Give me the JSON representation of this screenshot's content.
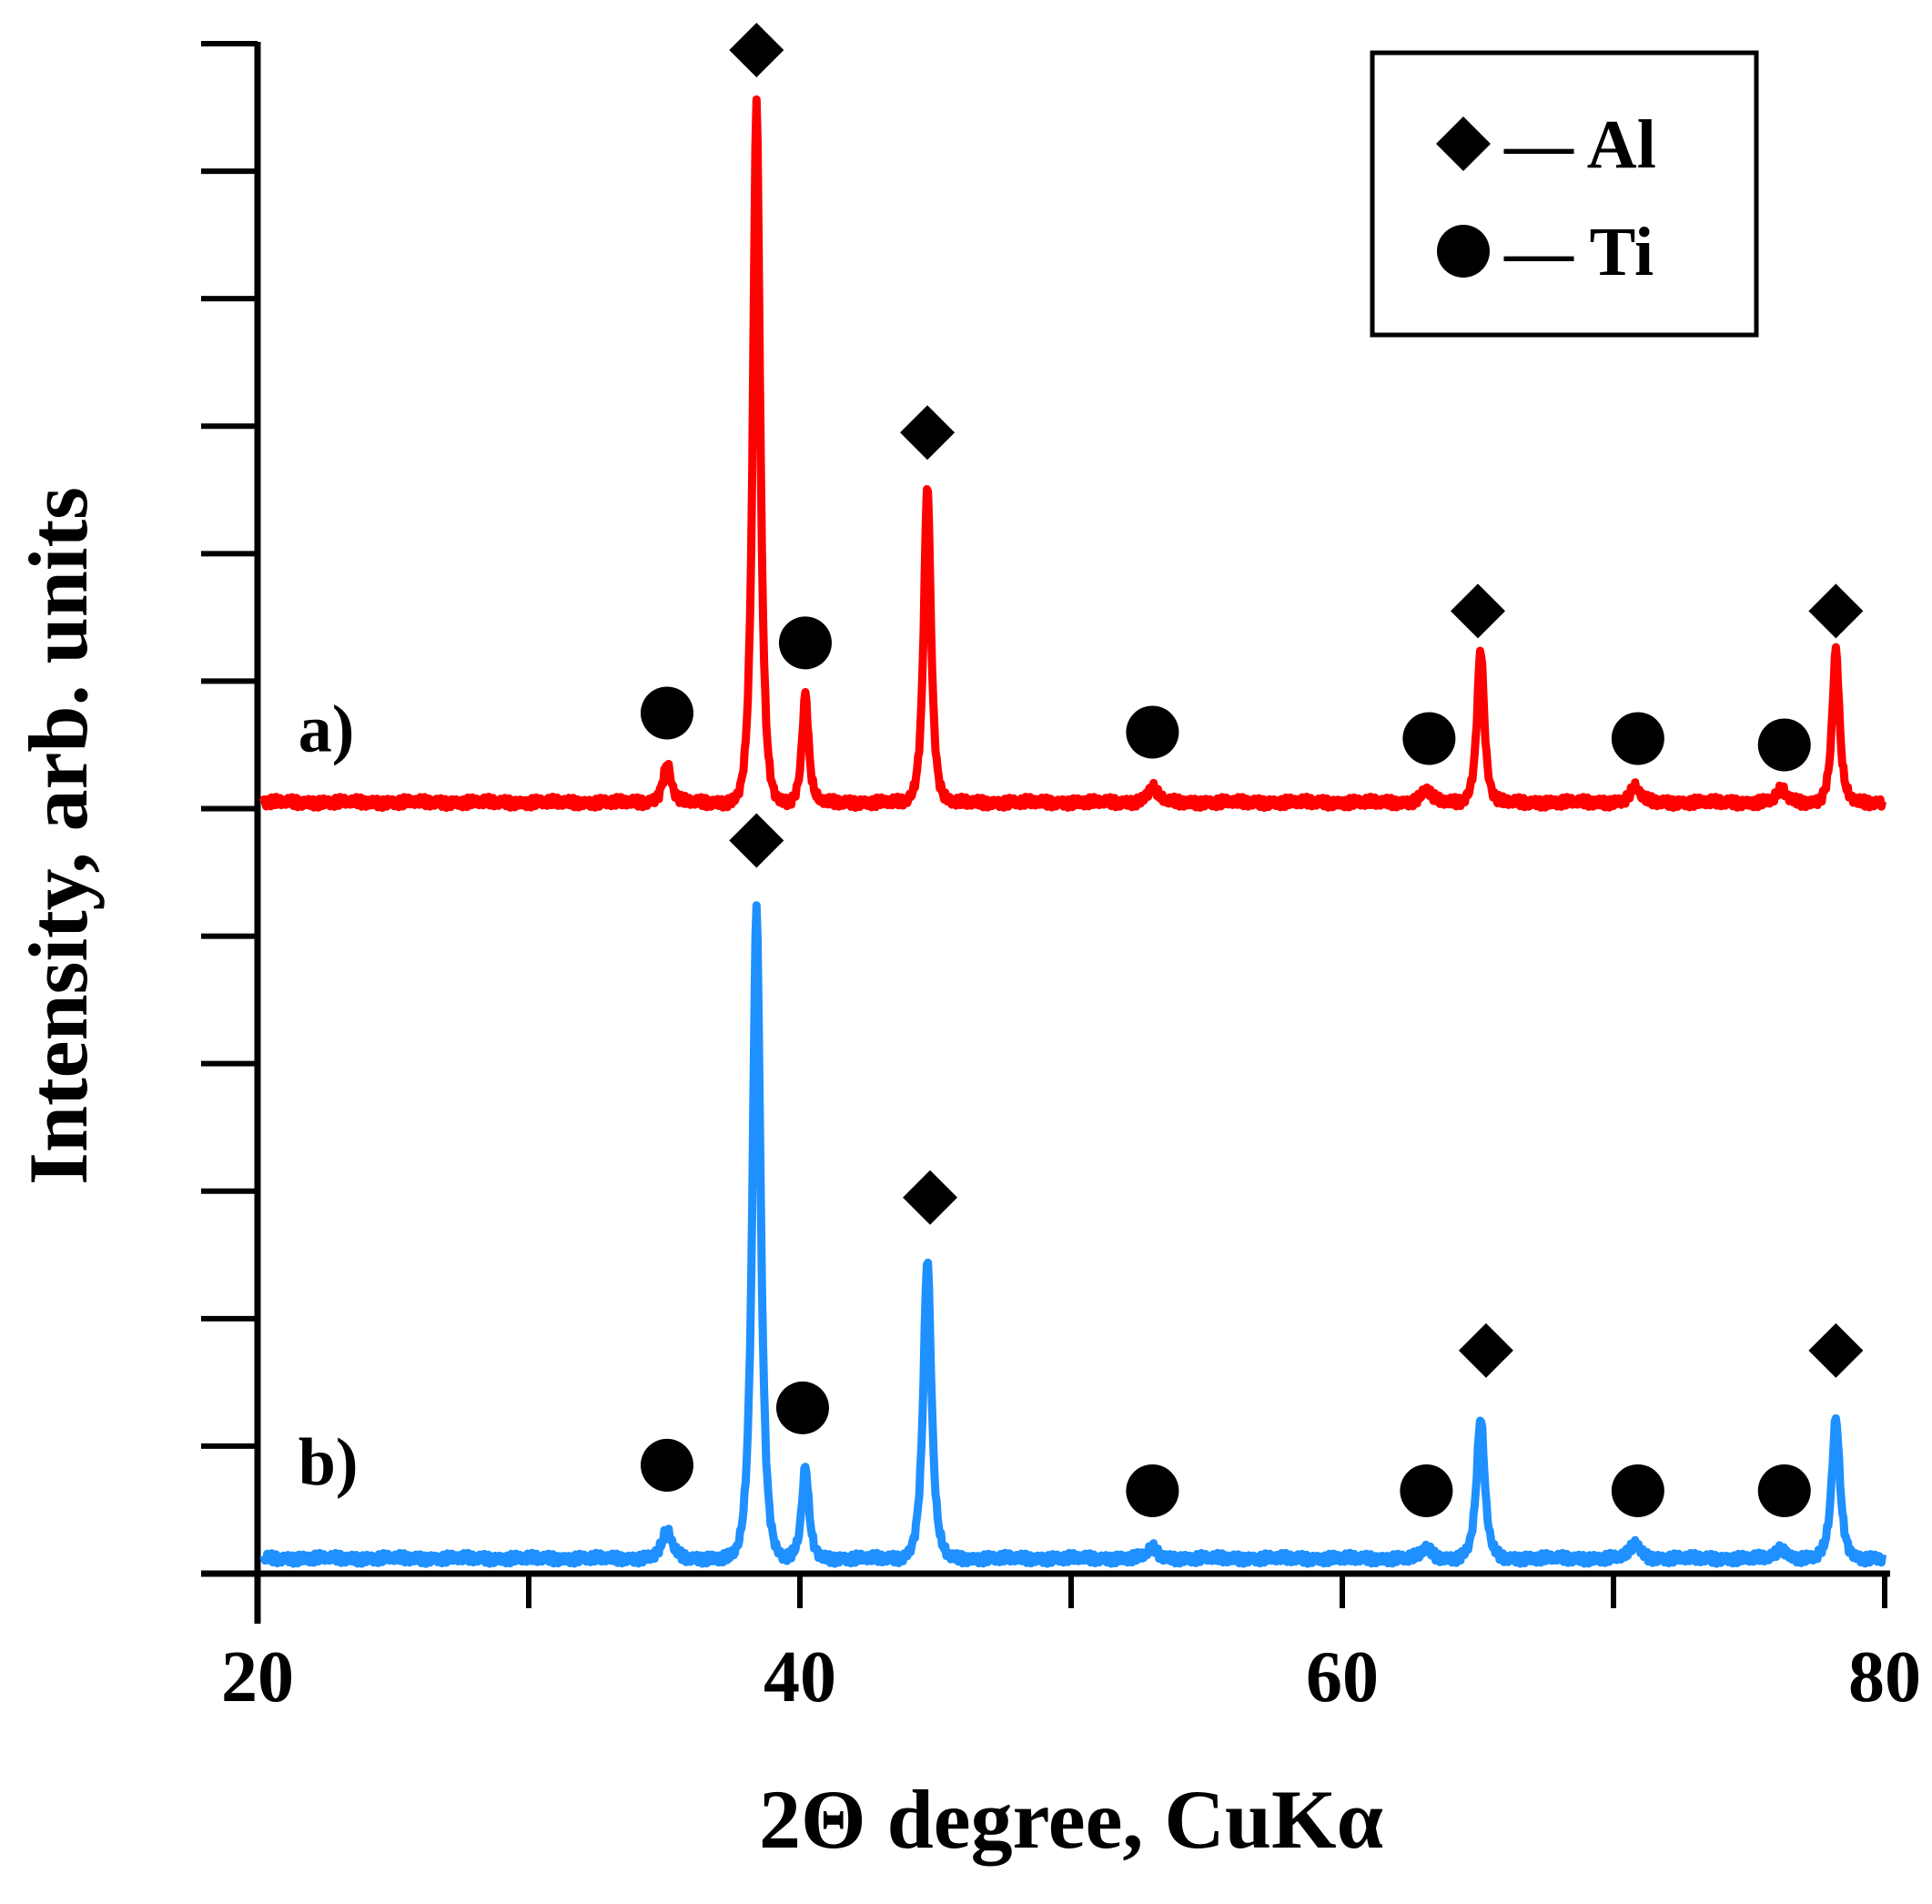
{
  "chart_data": {
    "type": "line",
    "title": "",
    "xlabel": "2Θ degree, CuKα",
    "ylabel": "Intensity, arb. units",
    "xlim": [
      20,
      80
    ],
    "ylim": [
      0,
      12
    ],
    "x_ticks": [
      20,
      30,
      40,
      50,
      60,
      70,
      80
    ],
    "x_tick_labels": [
      "20",
      "",
      "40",
      "",
      "60",
      "",
      "80"
    ],
    "y_ticks": [
      0,
      1,
      2,
      3,
      4,
      5,
      6,
      7,
      8,
      9,
      10,
      11,
      12
    ],
    "y_tick_labels": [],
    "legend": {
      "position": "top-right",
      "entries": [
        {
          "marker": "diamond",
          "label": "— Al"
        },
        {
          "marker": "circle",
          "label": "— Ti"
        }
      ]
    },
    "series": [
      {
        "name": "a)",
        "color": "#ff0000",
        "baseline": 6.05,
        "peaks": [
          {
            "x": 35.1,
            "height": 0.3,
            "width": 0.25
          },
          {
            "x": 38.4,
            "height": 5.5,
            "width": 0.22
          },
          {
            "x": 40.2,
            "height": 0.85,
            "width": 0.2
          },
          {
            "x": 44.7,
            "height": 2.5,
            "width": 0.22
          },
          {
            "x": 53.0,
            "height": 0.12,
            "width": 0.3
          },
          {
            "x": 63.1,
            "height": 0.1,
            "width": 0.3
          },
          {
            "x": 65.1,
            "height": 1.2,
            "width": 0.22
          },
          {
            "x": 70.8,
            "height": 0.12,
            "width": 0.3
          },
          {
            "x": 76.2,
            "height": 0.1,
            "width": 0.3
          },
          {
            "x": 78.2,
            "height": 1.2,
            "width": 0.22
          }
        ],
        "markers": [
          {
            "x": 35.1,
            "y": 6.75,
            "symbol": "circle"
          },
          {
            "x": 38.4,
            "y": 11.95,
            "symbol": "diamond"
          },
          {
            "x": 40.2,
            "y": 7.3,
            "symbol": "circle"
          },
          {
            "x": 44.7,
            "y": 8.95,
            "symbol": "diamond"
          },
          {
            "x": 53.0,
            "y": 6.6,
            "symbol": "circle"
          },
          {
            "x": 63.2,
            "y": 6.55,
            "symbol": "circle"
          },
          {
            "x": 65.0,
            "y": 7.55,
            "symbol": "diamond"
          },
          {
            "x": 70.9,
            "y": 6.55,
            "symbol": "circle"
          },
          {
            "x": 76.3,
            "y": 6.5,
            "symbol": "circle"
          },
          {
            "x": 78.2,
            "y": 7.55,
            "symbol": "diamond"
          }
        ]
      },
      {
        "name": "b)",
        "color": "#1e90ff",
        "baseline": 0.12,
        "peaks": [
          {
            "x": 35.1,
            "height": 0.22,
            "width": 0.3
          },
          {
            "x": 38.4,
            "height": 5.1,
            "width": 0.25
          },
          {
            "x": 40.2,
            "height": 0.72,
            "width": 0.22
          },
          {
            "x": 44.7,
            "height": 2.35,
            "width": 0.25
          },
          {
            "x": 53.0,
            "height": 0.08,
            "width": 0.3
          },
          {
            "x": 63.1,
            "height": 0.08,
            "width": 0.3
          },
          {
            "x": 65.1,
            "height": 1.1,
            "width": 0.25
          },
          {
            "x": 70.8,
            "height": 0.12,
            "width": 0.3
          },
          {
            "x": 76.2,
            "height": 0.08,
            "width": 0.3
          },
          {
            "x": 78.2,
            "height": 1.1,
            "width": 0.25
          }
        ],
        "markers": [
          {
            "x": 35.1,
            "y": 0.85,
            "symbol": "circle"
          },
          {
            "x": 38.4,
            "y": 5.75,
            "symbol": "diamond"
          },
          {
            "x": 40.1,
            "y": 1.3,
            "symbol": "circle"
          },
          {
            "x": 44.8,
            "y": 2.95,
            "symbol": "diamond"
          },
          {
            "x": 53.0,
            "y": 0.65,
            "symbol": "circle"
          },
          {
            "x": 63.1,
            "y": 0.65,
            "symbol": "circle"
          },
          {
            "x": 65.3,
            "y": 1.75,
            "symbol": "diamond"
          },
          {
            "x": 70.9,
            "y": 0.65,
            "symbol": "circle"
          },
          {
            "x": 76.3,
            "y": 0.65,
            "symbol": "circle"
          },
          {
            "x": 78.2,
            "y": 1.75,
            "symbol": "diamond"
          }
        ]
      }
    ],
    "series_labels": [
      {
        "text": "a)",
        "x": 21.5,
        "y": 6.65
      },
      {
        "text": "b)",
        "x": 21.5,
        "y": 0.9
      }
    ]
  }
}
